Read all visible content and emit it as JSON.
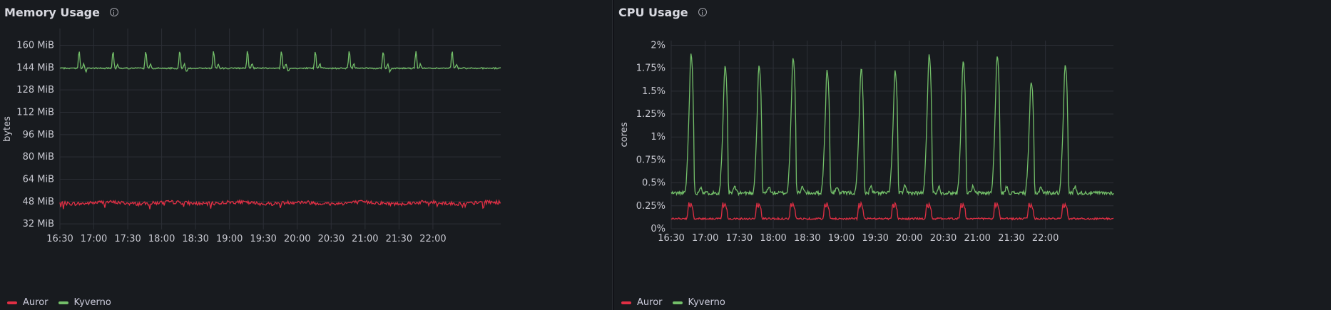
{
  "panels": {
    "memory": {
      "title": "Memory Usage",
      "info_icon": "info-icon"
    },
    "cpu": {
      "title": "CPU Usage",
      "info_icon": "info-icon"
    }
  },
  "colors": {
    "auror": "#e02f44",
    "kyverno": "#73bf69"
  },
  "legend": [
    "Auror",
    "Kyverno"
  ],
  "chart_data": [
    {
      "type": "line",
      "title": "Memory Usage",
      "ylabel": "bytes",
      "y_ticks": [
        "32 MiB",
        "48 MiB",
        "64 MiB",
        "80 MiB",
        "96 MiB",
        "112 MiB",
        "128 MiB",
        "144 MiB",
        "160 MiB"
      ],
      "y_tick_values": [
        32,
        48,
        64,
        80,
        96,
        112,
        128,
        144,
        160
      ],
      "x_ticks": [
        "16:30",
        "17:00",
        "17:30",
        "18:00",
        "18:30",
        "19:00",
        "19:30",
        "20:00",
        "20:30",
        "21:00",
        "21:30",
        "22:00"
      ],
      "ylim": [
        28,
        172
      ],
      "xlim": [
        "16:30",
        "23:00"
      ],
      "series": [
        {
          "name": "Auror",
          "color": "#e02f44",
          "baseline": 47,
          "noise": 1.3,
          "values_note_free": [
            47,
            46,
            48,
            47,
            45,
            48,
            47,
            46,
            47,
            48,
            46,
            47,
            46,
            48,
            47,
            45,
            47,
            48,
            47,
            46,
            48,
            47,
            46,
            47,
            48
          ]
        },
        {
          "name": "Kyverno",
          "color": "#73bf69",
          "baseline": 143.5,
          "spike_peak": 156,
          "spike_times": [
            "16:47",
            "17:17",
            "17:46",
            "18:16",
            "18:46",
            "19:16",
            "19:46",
            "20:16",
            "20:46",
            "21:16",
            "21:45",
            "22:17"
          ]
        }
      ],
      "grid": true,
      "legend_position": "bottom-left"
    },
    {
      "type": "line",
      "title": "CPU Usage",
      "ylabel": "cores",
      "y_ticks": [
        "0%",
        "0.25%",
        "0.5%",
        "0.75%",
        "1%",
        "1.25%",
        "1.5%",
        "1.75%",
        "2%"
      ],
      "y_tick_values": [
        0,
        0.25,
        0.5,
        0.75,
        1,
        1.25,
        1.5,
        1.75,
        2
      ],
      "x_ticks": [
        "16:30",
        "17:00",
        "17:30",
        "18:00",
        "18:30",
        "19:00",
        "19:30",
        "20:00",
        "20:30",
        "21:00",
        "21:30",
        "22:00"
      ],
      "ylim": [
        0,
        2.05
      ],
      "xlim": [
        "16:30",
        "23:00"
      ],
      "series": [
        {
          "name": "Auror",
          "color": "#e02f44",
          "baseline": 0.11,
          "spike_peak": 0.28,
          "spike_times": [
            "16:47",
            "17:17",
            "17:47",
            "18:17",
            "18:47",
            "19:17",
            "19:47",
            "20:17",
            "20:47",
            "21:17",
            "21:47",
            "22:17"
          ]
        },
        {
          "name": "Kyverno",
          "color": "#73bf69",
          "baseline": 0.39,
          "spike_peaks": [
            1.9,
            1.76,
            1.78,
            1.87,
            1.72,
            1.75,
            1.71,
            1.9,
            1.82,
            1.88,
            1.6,
            1.8
          ],
          "spike_times": [
            "16:47",
            "17:17",
            "17:47",
            "18:17",
            "18:47",
            "19:17",
            "19:47",
            "20:17",
            "20:47",
            "21:17",
            "21:47",
            "22:17"
          ]
        }
      ],
      "grid": true,
      "legend_position": "bottom-left"
    }
  ]
}
